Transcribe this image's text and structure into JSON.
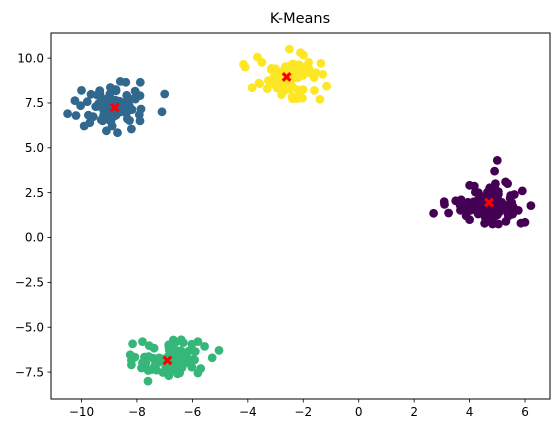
{
  "chart_data": {
    "type": "scatter",
    "title": "K-Means",
    "xlabel": "",
    "ylabel": "",
    "xlim": [
      -11.1,
      6.9
    ],
    "ylim": [
      -9.0,
      11.4
    ],
    "x_ticks": [
      -10,
      -8,
      -6,
      -4,
      -2,
      0,
      2,
      4,
      6
    ],
    "x_tick_labels": [
      "−10",
      "−8",
      "−6",
      "−4",
      "−2",
      "0",
      "2",
      "4",
      "6"
    ],
    "y_ticks": [
      -7.5,
      -5.0,
      -2.5,
      0.0,
      2.5,
      5.0,
      7.5,
      10.0
    ],
    "y_tick_labels": [
      "−7.5",
      "−5.0",
      "−2.5",
      "0.0",
      "2.5",
      "5.0",
      "7.5",
      "10.0"
    ],
    "grid": false,
    "colors": {
      "cluster_0": "#440154",
      "cluster_1": "#31688e",
      "cluster_2": "#35b779",
      "cluster_3": "#fde725",
      "centroid": "#ff0000",
      "axes": "#000000"
    },
    "clusters": [
      {
        "id": 0,
        "color": "#440154",
        "center": [
          4.7,
          1.9
        ],
        "spread": [
          0.55,
          0.5
        ],
        "points": [
          [
            2.7,
            1.35
          ],
          [
            5.0,
            4.3
          ],
          [
            5.9,
            2.6
          ],
          [
            6.0,
            0.85
          ],
          [
            5.85,
            0.8
          ],
          [
            5.4,
            1.2
          ],
          [
            4.0,
            1.0
          ],
          [
            3.5,
            2.05
          ],
          [
            4.9,
            3.7
          ],
          [
            5.3,
            3.1
          ]
        ]
      },
      {
        "id": 1,
        "color": "#31688e",
        "center": [
          -8.8,
          7.3
        ],
        "spread": [
          0.6,
          0.55
        ],
        "points": [
          [
            -10.5,
            6.9
          ],
          [
            -7.0,
            8.0
          ],
          [
            -8.2,
            6.05
          ],
          [
            -9.1,
            5.95
          ],
          [
            -10.0,
            8.2
          ],
          [
            -8.6,
            8.7
          ],
          [
            -10.2,
            6.8
          ],
          [
            -8.4,
            8.65
          ],
          [
            -9.7,
            6.4
          ]
        ]
      },
      {
        "id": 2,
        "color": "#35b779",
        "center": [
          -6.9,
          -6.85
        ],
        "spread": [
          0.6,
          0.45
        ],
        "points": [
          [
            -7.6,
            -8.0
          ],
          [
            -5.8,
            -5.8
          ],
          [
            -7.8,
            -5.8
          ],
          [
            -8.2,
            -7.1
          ],
          [
            -5.7,
            -7.3
          ],
          [
            -6.4,
            -5.7
          ],
          [
            -8.2,
            -6.85
          ]
        ]
      },
      {
        "id": 3,
        "color": "#fde725",
        "center": [
          -2.6,
          8.95
        ],
        "spread": [
          0.6,
          0.5
        ],
        "points": [
          [
            -4.1,
            9.5
          ],
          [
            -2.5,
            10.5
          ],
          [
            -1.3,
            9.1
          ],
          [
            -2.4,
            7.85
          ],
          [
            -1.6,
            8.2
          ],
          [
            -3.3,
            8.3
          ],
          [
            -2.1,
            10.3
          ],
          [
            -3.6,
            8.6
          ]
        ]
      }
    ],
    "points_per_cluster": 90,
    "centroids": [
      {
        "x": 4.7,
        "y": 1.95
      },
      {
        "x": -8.8,
        "y": 7.25
      },
      {
        "x": -6.9,
        "y": -6.85
      },
      {
        "x": -2.6,
        "y": 8.95
      }
    ]
  }
}
